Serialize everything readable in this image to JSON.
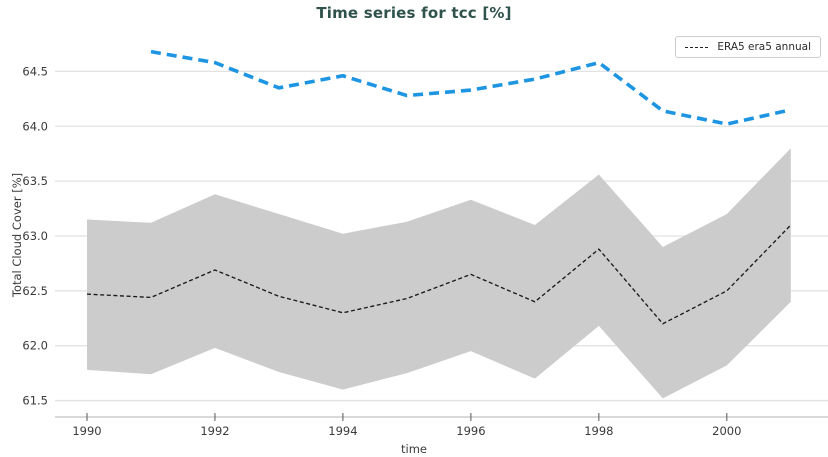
{
  "title": "Time series for tcc [%]",
  "legend": {
    "label": "ERA5 era5 annual",
    "swatch": "black-dashed-line"
  },
  "colors": {
    "title_text": "#30524c",
    "blue_line": "#1e95e2",
    "black_line": "#1a1a1a",
    "uncertainty_band": "#cccccc",
    "gridline": "#e2e2e2",
    "axis_spine": "#d9d9d9",
    "tick_text": "#3a3a3a",
    "background": "#ffffff",
    "legend_border": "#cccccc"
  },
  "chart_data": {
    "type": "line",
    "title": "Time series for tcc [%]",
    "xlabel": "time",
    "ylabel": "Total Cloud Cover [%]",
    "xlim": [
      1989.5,
      2001.55
    ],
    "ylim": [
      61.35,
      64.85
    ],
    "xticks": [
      1990,
      1992,
      1994,
      1996,
      1998,
      2000
    ],
    "yticks": [
      61.5,
      62.0,
      62.5,
      63.0,
      63.5,
      64.0,
      64.5
    ],
    "grid": "horizontal-only",
    "legend_position": "upper-right",
    "series": [
      {
        "name": "ERA5 era5 annual",
        "color": "#1a1a1a",
        "line_style": "dashed",
        "line_width": 1.35,
        "dash": "4 2.6",
        "in_legend": true,
        "x": [
          1990,
          1991,
          1992,
          1993,
          1994,
          1995,
          1996,
          1997,
          1998,
          1999,
          2000,
          2001
        ],
        "y": [
          62.47,
          62.44,
          62.69,
          62.45,
          62.3,
          62.43,
          62.65,
          62.4,
          62.88,
          62.2,
          62.5,
          63.1
        ],
        "band_upper": [
          63.15,
          63.12,
          63.38,
          63.2,
          63.02,
          63.13,
          63.33,
          63.1,
          63.56,
          62.9,
          63.2,
          63.8
        ],
        "band_lower": [
          61.78,
          61.74,
          61.98,
          61.76,
          61.6,
          61.75,
          61.95,
          61.7,
          62.18,
          61.52,
          61.82,
          62.4
        ],
        "band_color": "#cccccc"
      },
      {
        "name": "",
        "color": "#1e95e2",
        "line_style": "dashed",
        "line_width": 3.6,
        "dash": "10 6",
        "in_legend": false,
        "x": [
          1991,
          1992,
          1993,
          1994,
          1995,
          1996,
          1997,
          1998,
          1999,
          2000,
          2001
        ],
        "y": [
          64.68,
          64.58,
          64.35,
          64.46,
          64.28,
          64.33,
          64.43,
          64.58,
          64.14,
          64.02,
          64.15
        ]
      }
    ]
  }
}
